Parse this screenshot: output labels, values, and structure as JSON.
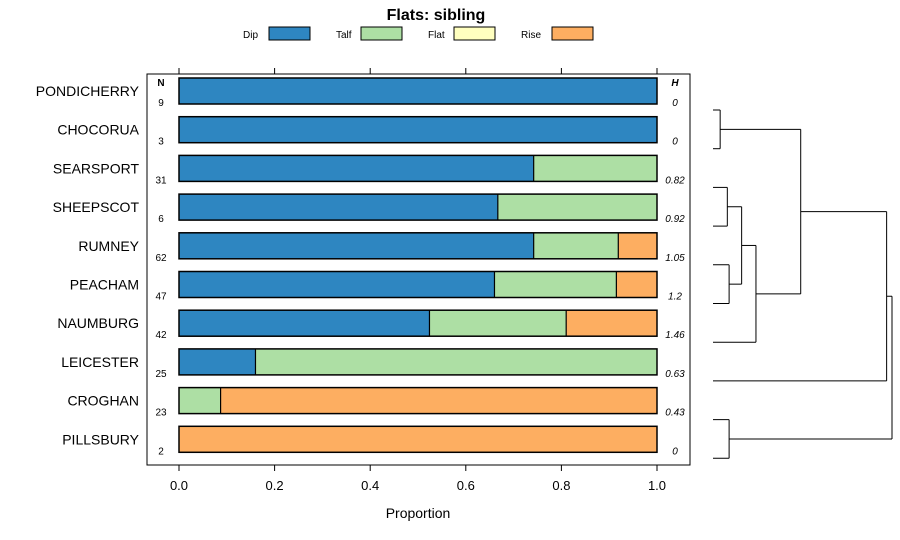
{
  "chart_data": {
    "type": "bar",
    "orientation": "horizontal-stacked",
    "title": "Flats: sibling",
    "xlabel": "Proportion",
    "xlim": [
      0,
      1
    ],
    "xticks": [
      "0.0",
      "0.2",
      "0.4",
      "0.6",
      "0.8",
      "1.0"
    ],
    "n_header": "N",
    "h_header": "H",
    "series": [
      {
        "name": "Dip",
        "color": "#2e86c1"
      },
      {
        "name": "Talf",
        "color": "#addfa4"
      },
      {
        "name": "Flat",
        "color": "#ffffbf"
      },
      {
        "name": "Rise",
        "color": "#fdae61"
      }
    ],
    "rows": [
      {
        "label": "PONDICHERRY",
        "n": "9",
        "h": "0",
        "values": [
          1.0,
          0,
          0,
          0
        ]
      },
      {
        "label": "CHOCORUA",
        "n": "3",
        "h": "0",
        "values": [
          1.0,
          0,
          0,
          0
        ]
      },
      {
        "label": "SEARSPORT",
        "n": "31",
        "h": "0.82",
        "values": [
          0.742,
          0.258,
          0,
          0
        ]
      },
      {
        "label": "SHEEPSCOT",
        "n": "6",
        "h": "0.92",
        "values": [
          0.667,
          0.333,
          0,
          0
        ]
      },
      {
        "label": "RUMNEY",
        "n": "62",
        "h": "1.05",
        "values": [
          0.742,
          0.177,
          0,
          0.081
        ]
      },
      {
        "label": "PEACHAM",
        "n": "47",
        "h": "1.2",
        "values": [
          0.66,
          0.255,
          0,
          0.085
        ]
      },
      {
        "label": "NAUMBURG",
        "n": "42",
        "h": "1.46",
        "values": [
          0.524,
          0.286,
          0,
          0.19
        ]
      },
      {
        "label": "LEICESTER",
        "n": "25",
        "h": "0.63",
        "values": [
          0.16,
          0.84,
          0,
          0
        ]
      },
      {
        "label": "CROGHAN",
        "n": "23",
        "h": "0.43",
        "values": [
          0,
          0.087,
          0,
          0.913
        ]
      },
      {
        "label": "PILLSBURY",
        "n": "2",
        "h": "0",
        "values": [
          0,
          0,
          0,
          1.0
        ]
      }
    ],
    "dendrogram": {
      "description": "hierarchical clustering of rows (leaf indices 0-9 = rows top to bottom)",
      "merges": [
        {
          "a": "leaf0",
          "b": "leaf1",
          "height": 0.04
        },
        {
          "a": "leaf4",
          "b": "leaf5",
          "height": 0.09
        },
        {
          "a": "leaf2",
          "b": "leaf3",
          "height": 0.08
        },
        {
          "a": "m2",
          "b": "m1",
          "height": 0.16
        },
        {
          "a": "m3",
          "b": "leaf6",
          "height": 0.24
        },
        {
          "a": "leaf8",
          "b": "leaf9",
          "height": 0.09
        },
        {
          "a": "m0",
          "b": "m4",
          "height": 0.49
        },
        {
          "a": "m6",
          "b": "leaf7",
          "height": 0.97
        },
        {
          "a": "m7",
          "b": "m5",
          "height": 1.0
        }
      ]
    }
  }
}
